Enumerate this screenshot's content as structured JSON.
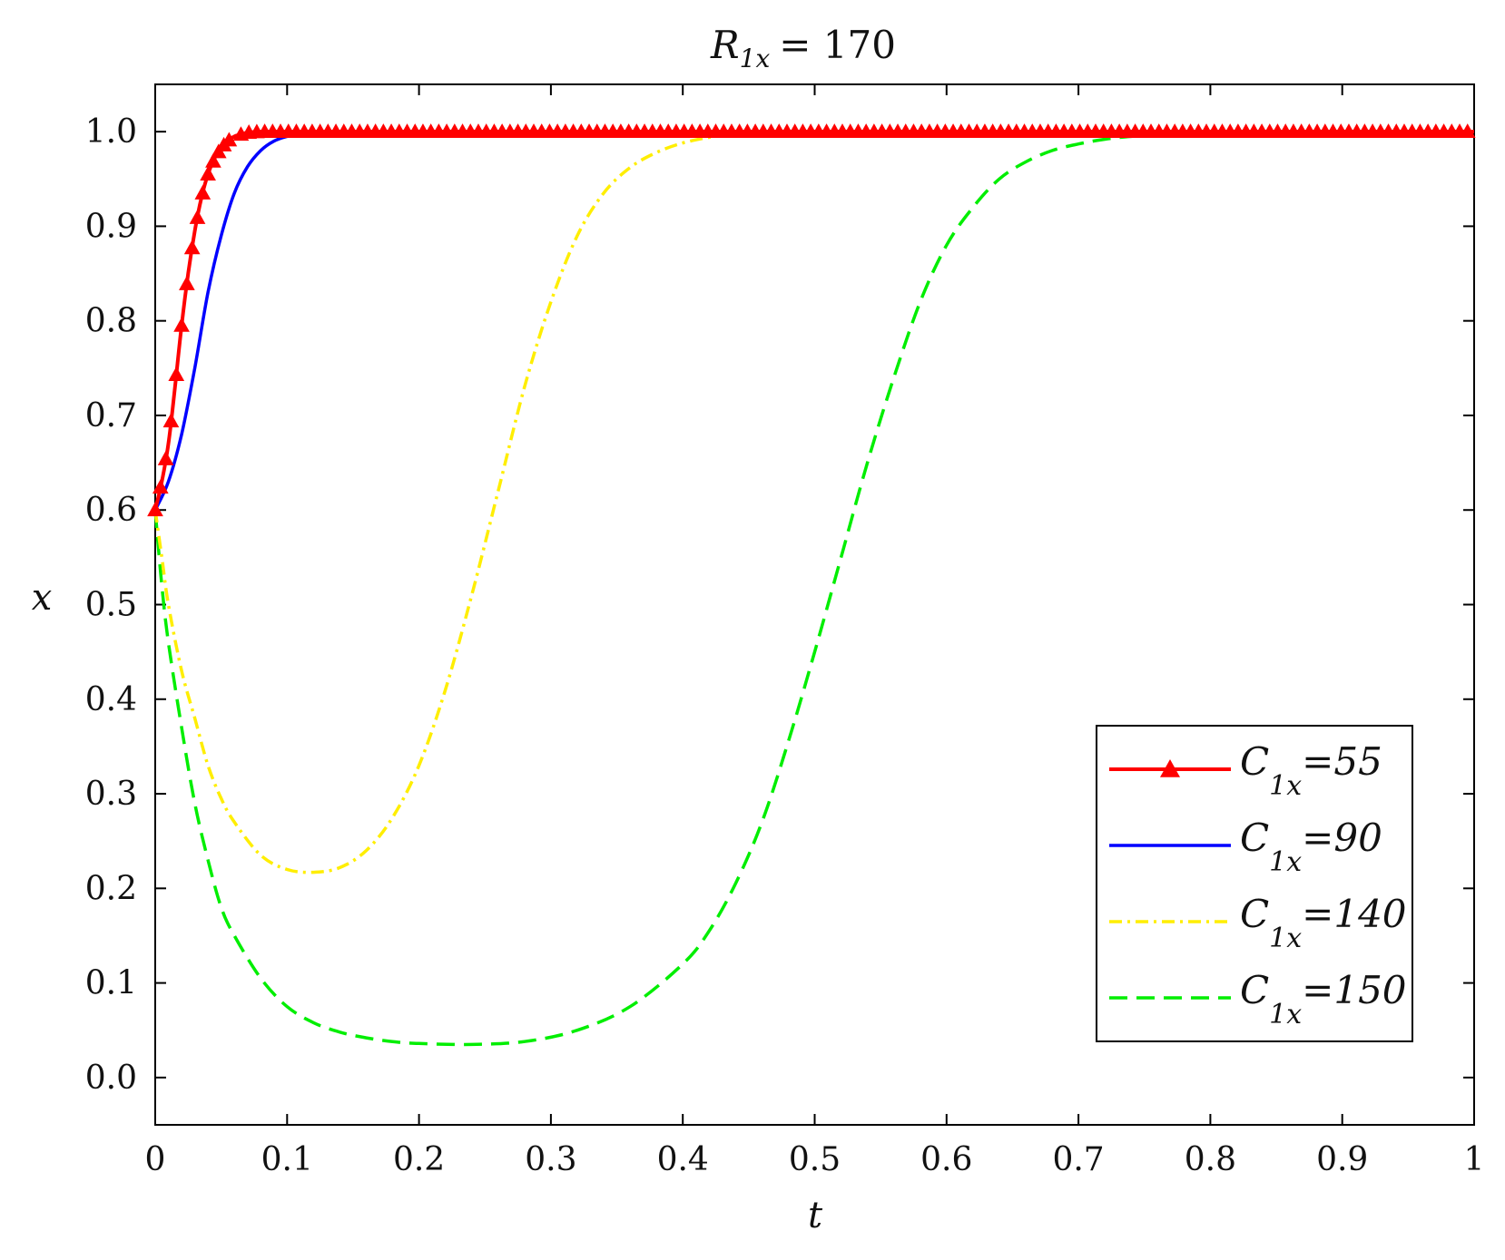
{
  "chart_data": {
    "type": "line",
    "title": "R",
    "title_sub": "1x",
    "title_value": "= 170",
    "xlabel": "t",
    "ylabel": "x",
    "xlim": [
      0,
      1
    ],
    "ylim": [
      -0.05,
      1.05
    ],
    "x_ticks": [
      0,
      0.1,
      0.2,
      0.3,
      0.4,
      0.5,
      0.6,
      0.7,
      0.8,
      0.9,
      1
    ],
    "x_tick_labels": [
      "0",
      "0.1",
      "0.2",
      "0.3",
      "0.4",
      "0.5",
      "0.6",
      "0.7",
      "0.8",
      "0.9",
      "1"
    ],
    "y_ticks": [
      0,
      0.1,
      0.2,
      0.3,
      0.4,
      0.5,
      0.6,
      0.7,
      0.8,
      0.9,
      1.0
    ],
    "y_tick_labels": [
      "0.0",
      "0.1",
      "0.2",
      "0.3",
      "0.4",
      "0.5",
      "0.6",
      "0.7",
      "0.8",
      "0.9",
      "1.0"
    ],
    "grid": false,
    "legend_position": "bottom-right",
    "series": [
      {
        "name": "C1x=55",
        "label_main": "C",
        "label_sub": "1x",
        "label_value": "=55",
        "color": "#ff0000",
        "style": "solid-triangle",
        "x": [
          0,
          0.005,
          0.01,
          0.015,
          0.02,
          0.025,
          0.03,
          0.035,
          0.04,
          0.045,
          0.05,
          0.055,
          0.06,
          0.065,
          0.07,
          0.08,
          0.09,
          0.1,
          0.12,
          0.15,
          0.2,
          0.3,
          0.4,
          0.5,
          0.6,
          0.7,
          0.8,
          0.9,
          1.0
        ],
        "y": [
          0.6,
          0.63,
          0.67,
          0.73,
          0.795,
          0.85,
          0.895,
          0.93,
          0.955,
          0.972,
          0.983,
          0.99,
          0.995,
          0.997,
          0.999,
          1.0,
          1.0,
          1.0,
          1.0,
          1.0,
          1.0,
          1.0,
          1.0,
          1.0,
          1.0,
          1.0,
          1.0,
          1.0,
          1.0
        ]
      },
      {
        "name": "C1x=90",
        "label_main": "C",
        "label_sub": "1x",
        "label_value": "=90",
        "color": "#0000ff",
        "style": "solid",
        "x": [
          0,
          0.01,
          0.02,
          0.03,
          0.04,
          0.05,
          0.06,
          0.07,
          0.08,
          0.09,
          0.1,
          0.11,
          0.12,
          0.14,
          0.2,
          0.3,
          0.4,
          0.5,
          0.6,
          0.7,
          0.8,
          0.9,
          1.0
        ],
        "y": [
          0.6,
          0.63,
          0.68,
          0.75,
          0.83,
          0.89,
          0.935,
          0.963,
          0.98,
          0.99,
          0.995,
          0.998,
          0.999,
          1.0,
          1.0,
          1.0,
          1.0,
          1.0,
          1.0,
          1.0,
          1.0,
          1.0,
          1.0
        ]
      },
      {
        "name": "C1x=140",
        "label_main": "C",
        "label_sub": "1x",
        "label_value": "=140",
        "color": "#ffee00",
        "style": "dashdot",
        "x": [
          0,
          0.005,
          0.01,
          0.02,
          0.03,
          0.04,
          0.05,
          0.06,
          0.08,
          0.1,
          0.12,
          0.14,
          0.16,
          0.18,
          0.2,
          0.22,
          0.24,
          0.26,
          0.28,
          0.3,
          0.32,
          0.34,
          0.36,
          0.38,
          0.4,
          0.42,
          0.44,
          0.46,
          0.5,
          0.6,
          0.7,
          0.8,
          0.9,
          1.0
        ],
        "y": [
          0.6,
          0.55,
          0.5,
          0.43,
          0.38,
          0.33,
          0.295,
          0.27,
          0.235,
          0.22,
          0.217,
          0.222,
          0.24,
          0.275,
          0.33,
          0.41,
          0.51,
          0.62,
          0.73,
          0.82,
          0.89,
          0.935,
          0.962,
          0.978,
          0.988,
          0.994,
          0.997,
          0.999,
          1.0,
          1.0,
          1.0,
          1.0,
          1.0,
          1.0
        ]
      },
      {
        "name": "C1x=150",
        "label_main": "C",
        "label_sub": "1x",
        "label_value": "=150",
        "color": "#00ee00",
        "style": "dashed",
        "x": [
          0,
          0.005,
          0.01,
          0.02,
          0.03,
          0.04,
          0.05,
          0.06,
          0.08,
          0.1,
          0.12,
          0.14,
          0.16,
          0.18,
          0.2,
          0.24,
          0.28,
          0.32,
          0.36,
          0.4,
          0.42,
          0.44,
          0.46,
          0.48,
          0.5,
          0.52,
          0.54,
          0.56,
          0.58,
          0.6,
          0.62,
          0.64,
          0.66,
          0.68,
          0.7,
          0.72,
          0.74,
          0.76,
          0.78,
          0.8,
          0.9,
          1.0
        ],
        "y": [
          0.6,
          0.52,
          0.46,
          0.37,
          0.29,
          0.23,
          0.18,
          0.15,
          0.105,
          0.075,
          0.058,
          0.048,
          0.042,
          0.038,
          0.036,
          0.035,
          0.038,
          0.05,
          0.075,
          0.12,
          0.155,
          0.205,
          0.27,
          0.355,
          0.45,
          0.55,
          0.65,
          0.74,
          0.82,
          0.88,
          0.92,
          0.95,
          0.968,
          0.98,
          0.987,
          0.992,
          0.995,
          0.997,
          0.998,
          0.999,
          1.0,
          1.0
        ]
      }
    ]
  }
}
